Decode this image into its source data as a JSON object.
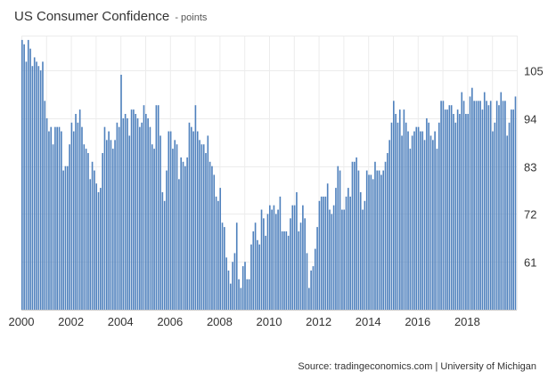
{
  "chart_data": {
    "type": "bar",
    "title": "US Consumer Confidence",
    "title_unit": "points",
    "xlabel": "",
    "ylabel": "",
    "ylim": [
      50,
      113
    ],
    "y_ticks": [
      61,
      72,
      83,
      94,
      105
    ],
    "x_ticks": [
      "2000",
      "2002",
      "2004",
      "2006",
      "2008",
      "2010",
      "2012",
      "2014",
      "2016",
      "2018"
    ],
    "x_range_years": [
      2000,
      2020
    ],
    "bar_color": "#4f81bd",
    "grid": true,
    "legend": "none",
    "series": [
      {
        "frequency": "monthly",
        "start": "2000-01",
        "values": [
          112,
          111,
          107,
          112,
          110,
          106,
          108,
          107,
          106,
          105,
          107,
          98,
          94,
          91,
          92,
          88,
          92,
          92,
          92,
          91,
          82,
          83,
          83,
          88,
          93,
          91,
          95,
          93,
          96,
          92,
          88,
          87,
          86,
          80,
          84,
          82,
          79,
          77,
          78,
          86,
          92,
          89,
          91,
          89,
          87,
          89,
          93,
          92,
          104,
          94,
          95,
          94,
          90,
          96,
          96,
          95,
          94,
          92,
          93,
          97,
          95,
          94,
          92,
          88,
          87,
          97,
          97,
          90,
          77,
          75,
          82,
          91,
          91,
          87,
          89,
          88,
          80,
          85,
          84,
          83,
          85,
          93,
          92,
          91,
          97,
          91,
          89,
          88,
          88,
          86,
          90,
          84,
          83,
          81,
          76,
          75,
          78,
          70,
          69,
          62,
          59,
          56,
          61,
          63,
          70,
          57,
          55,
          60,
          61,
          57,
          57,
          65,
          68,
          70,
          66,
          65,
          73,
          71,
          67,
          72,
          74,
          73,
          74,
          72,
          73,
          76,
          68,
          68,
          68,
          67,
          71,
          74,
          74,
          77,
          68,
          70,
          74,
          71,
          63,
          55,
          59,
          60,
          64,
          69,
          75,
          76,
          76,
          76,
          79,
          73,
          72,
          74,
          78,
          83,
          82,
          73,
          73,
          76,
          78,
          76,
          84,
          84,
          85,
          82,
          77,
          73,
          75,
          82,
          81,
          81,
          80,
          84,
          82,
          82,
          81,
          82,
          84,
          86,
          89,
          93,
          98,
          95,
          93,
          96,
          90,
          96,
          93,
          91,
          87,
          90,
          91,
          92,
          92,
          91,
          91,
          89,
          94,
          93,
          90,
          89,
          91,
          87,
          93,
          98,
          98,
          96,
          96,
          97,
          97,
          95,
          93,
          96,
          95,
          100,
          98,
          95,
          95,
          99,
          101,
          98,
          98,
          98,
          98,
          96,
          100,
          98,
          97,
          98,
          91,
          93,
          98,
          97,
          100,
          98,
          98,
          90,
          93,
          96,
          96,
          99
        ]
      }
    ]
  },
  "source_text": "Source: tradingeconomics.com | University of Michigan"
}
